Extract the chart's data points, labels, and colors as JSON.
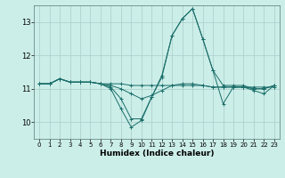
{
  "xlabel": "Humidex (Indice chaleur)",
  "ylabel": "",
  "bg_color": "#cceee8",
  "grid_color": "#aacccc",
  "line_color": "#1a6e6a",
  "ylim": [
    9.5,
    13.5
  ],
  "xlim": [
    -0.5,
    23.5
  ],
  "yticks": [
    10,
    11,
    12,
    13
  ],
  "xticks": [
    0,
    1,
    2,
    3,
    4,
    5,
    6,
    7,
    8,
    9,
    10,
    11,
    12,
    13,
    14,
    15,
    16,
    17,
    18,
    19,
    20,
    21,
    22,
    23
  ],
  "series": [
    [
      11.15,
      11.15,
      11.3,
      11.2,
      11.2,
      11.2,
      11.15,
      11.15,
      11.15,
      11.1,
      11.1,
      11.1,
      11.1,
      11.1,
      11.1,
      11.1,
      11.1,
      11.05,
      11.05,
      11.05,
      11.05,
      11.05,
      11.05,
      11.05
    ],
    [
      11.15,
      11.15,
      11.3,
      11.2,
      11.2,
      11.2,
      11.15,
      11.1,
      11.0,
      10.85,
      10.7,
      10.8,
      10.95,
      11.1,
      11.15,
      11.15,
      11.1,
      11.05,
      11.05,
      11.05,
      11.05,
      11.0,
      11.0,
      11.1
    ],
    [
      11.15,
      11.15,
      11.3,
      11.2,
      11.2,
      11.2,
      11.15,
      11.05,
      10.7,
      10.1,
      10.1,
      10.75,
      11.4,
      12.6,
      13.1,
      13.4,
      12.5,
      11.55,
      11.1,
      11.1,
      11.1,
      11.0,
      11.0,
      11.1
    ],
    [
      11.15,
      11.15,
      11.3,
      11.2,
      11.2,
      11.2,
      11.15,
      11.0,
      10.4,
      9.85,
      10.05,
      10.75,
      11.35,
      12.6,
      13.1,
      13.4,
      12.5,
      11.55,
      10.55,
      11.05,
      11.05,
      10.95,
      10.85,
      11.1
    ]
  ]
}
